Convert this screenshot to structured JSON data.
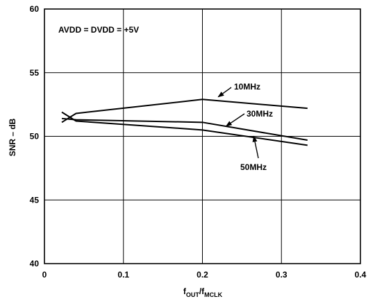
{
  "chart_data": {
    "type": "line",
    "annotation": "AVDD = DVDD = +5V",
    "ylabel": "SNR – dB",
    "xlabel_main": "f",
    "xlabel_sub1": "OUT",
    "xlabel_slash": "/f",
    "xlabel_sub2": "MCLK",
    "xlim": [
      0,
      0.4
    ],
    "ylim": [
      40,
      60
    ],
    "x_ticks": [
      0,
      0.1,
      0.2,
      0.3,
      0.4
    ],
    "x_tick_labels": [
      "0",
      "0.1",
      "0.2",
      "0.3",
      "0.4"
    ],
    "y_ticks": [
      40,
      45,
      50,
      55,
      60
    ],
    "y_tick_labels": [
      "40",
      "45",
      "50",
      "55",
      "60"
    ],
    "grid": true,
    "series": [
      {
        "name": "10MHz",
        "x": [
          0.022,
          0.04,
          0.2,
          0.333
        ],
        "y": [
          51.1,
          51.8,
          52.9,
          52.2
        ]
      },
      {
        "name": "30MHz",
        "x": [
          0.022,
          0.04,
          0.2,
          0.333
        ],
        "y": [
          51.4,
          51.3,
          51.1,
          49.7
        ]
      },
      {
        "name": "50MHz",
        "x": [
          0.022,
          0.04,
          0.2,
          0.333
        ],
        "y": [
          51.9,
          51.2,
          50.5,
          49.3
        ]
      }
    ],
    "series_callouts": [
      {
        "series": "10MHz",
        "arrow_to": [
          0.22,
          53.1
        ]
      },
      {
        "series": "30MHz",
        "arrow_to": [
          0.23,
          50.8
        ]
      },
      {
        "series": "50MHz",
        "arrow_to": [
          0.265,
          50.0
        ]
      }
    ]
  }
}
